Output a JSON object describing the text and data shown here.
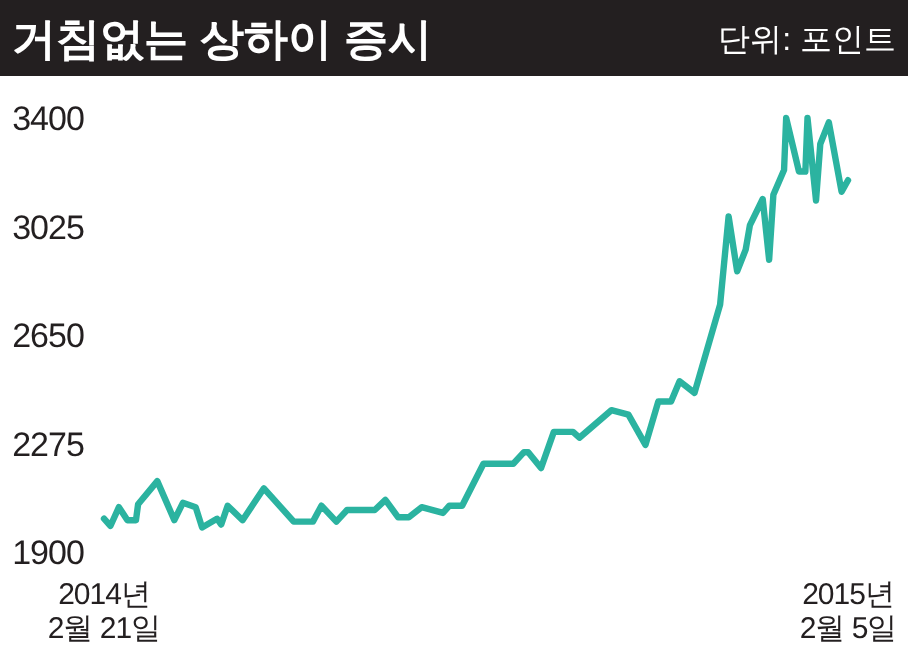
{
  "chart_data": {
    "type": "line",
    "title": "거침없는 상하이 증시",
    "subtitle": "단위: 포인트",
    "x": [
      "2014-02-21",
      "2014-02-24",
      "2014-02-28",
      "2014-03-04",
      "2014-03-08",
      "2014-03-09",
      "2014-03-18",
      "2014-03-26",
      "2014-03-30",
      "2014-04-05",
      "2014-04-08",
      "2014-04-15",
      "2014-04-17",
      "2014-04-20",
      "2014-04-27",
      "2014-05-07",
      "2014-05-21",
      "2014-05-30",
      "2014-06-03",
      "2014-06-10",
      "2014-06-15",
      "2014-06-28",
      "2014-07-03",
      "2014-07-09",
      "2014-07-14",
      "2014-07-20",
      "2014-07-30",
      "2014-08-02",
      "2014-08-08",
      "2014-08-18",
      "2014-09-01",
      "2014-09-06",
      "2014-09-08",
      "2014-09-14",
      "2014-09-20",
      "2014-09-29",
      "2014-10-02",
      "2014-10-17",
      "2014-10-25",
      "2014-11-02",
      "2014-11-08",
      "2014-11-14",
      "2014-11-18",
      "2014-11-25",
      "2014-12-07",
      "2014-12-11",
      "2014-12-15",
      "2014-12-19",
      "2014-12-21",
      "2014-12-27",
      "2014-12-30",
      "2015-01-01",
      "2015-01-06",
      "2015-01-07",
      "2015-01-13",
      "2015-01-16",
      "2015-01-17",
      "2015-01-21",
      "2015-01-23",
      "2015-01-27",
      "2015-02-02",
      "2015-02-05"
    ],
    "series": [
      {
        "color": "#2bb3a0",
        "values": [
          2015,
          1990,
          2055,
          2010,
          2010,
          2065,
          2145,
          2010,
          2070,
          2055,
          1985,
          2015,
          1995,
          2060,
          2010,
          2120,
          2005,
          2005,
          2060,
          2005,
          2045,
          2045,
          2080,
          2020,
          2020,
          2055,
          2035,
          2060,
          2060,
          2205,
          2205,
          2245,
          2245,
          2190,
          2315,
          2315,
          2295,
          2390,
          2375,
          2270,
          2420,
          2420,
          2490,
          2450,
          2755,
          3060,
          2870,
          2945,
          3030,
          3120,
          2910,
          3135,
          3220,
          3400,
          3215,
          3215,
          3400,
          3115,
          3310,
          3385,
          3145,
          3185
        ]
      }
    ],
    "xlim": [
      "2014-02-21",
      "2015-02-05"
    ],
    "xticks": [
      {
        "value": "2014-02-21",
        "label": "2014년 2월 21일"
      },
      {
        "value": "2015-02-05",
        "label": "2015년 2월 5일"
      }
    ],
    "ylim": [
      1900,
      3400
    ],
    "yticks": [
      1900,
      2275,
      2650,
      3025,
      3400
    ],
    "grid": false,
    "marker": "none",
    "line_style": "solid"
  }
}
